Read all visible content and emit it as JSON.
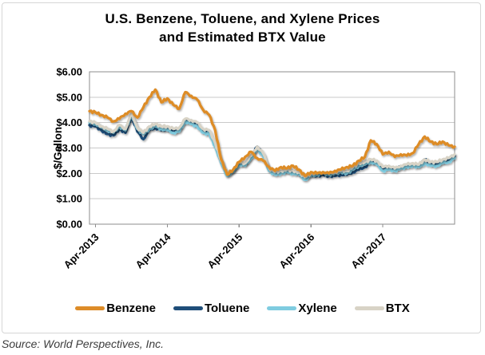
{
  "title": {
    "line1": "U.S. Benzene, Toluene, and Xylene Prices",
    "line2": "and Estimated BTX Value"
  },
  "source_note": "Source: World Perspectives, Inc.",
  "chart_data": {
    "type": "line",
    "title": "U.S. Benzene, Toluene, and Xylene Prices and Estimated BTX Value",
    "ylabel": "$/Gallon",
    "ylim": [
      0,
      6
    ],
    "ytick_labels": [
      "$0.00",
      "$1.00",
      "$2.00",
      "$3.00",
      "$4.00",
      "$5.00",
      "$6.00"
    ],
    "grid": "horizontal",
    "legend_position": "bottom",
    "x_unit": "month",
    "x_range": [
      "Mar-2013",
      "Apr-2018"
    ],
    "xticks": [
      {
        "label": "Apr-2013",
        "index": 1
      },
      {
        "label": "Apr-2014",
        "index": 13
      },
      {
        "label": "Apr-2015",
        "index": 25
      },
      {
        "label": "Apr-2016",
        "index": 37
      },
      {
        "label": "Apr-2017",
        "index": 49
      }
    ],
    "series": [
      {
        "name": "Benzene",
        "color": "#DD8C28",
        "values": [
          4.45,
          4.4,
          4.3,
          4.2,
          4.05,
          4.15,
          4.35,
          4.45,
          4.2,
          4.6,
          5.0,
          5.3,
          4.8,
          4.95,
          4.7,
          4.55,
          5.2,
          5.05,
          4.9,
          4.5,
          4.3,
          3.7,
          2.55,
          1.95,
          2.15,
          2.45,
          2.65,
          2.85,
          2.6,
          2.5,
          2.25,
          2.1,
          2.25,
          2.2,
          2.3,
          2.15,
          1.9,
          2.05,
          2.0,
          2.05,
          2.0,
          2.1,
          2.15,
          2.25,
          2.3,
          2.5,
          2.65,
          3.3,
          3.15,
          2.75,
          2.85,
          2.65,
          2.75,
          2.7,
          2.8,
          3.15,
          3.45,
          3.25,
          3.15,
          3.25,
          3.1,
          3.05
        ]
      },
      {
        "name": "Toluene",
        "color": "#1F4E79",
        "values": [
          3.9,
          3.85,
          3.7,
          3.55,
          3.5,
          3.75,
          3.6,
          4.25,
          3.65,
          3.35,
          3.7,
          3.8,
          3.7,
          3.75,
          3.65,
          3.7,
          4.1,
          4.0,
          3.9,
          3.65,
          3.6,
          3.15,
          2.45,
          1.95,
          2.1,
          2.4,
          2.35,
          2.65,
          3.05,
          2.75,
          2.15,
          2.0,
          2.05,
          2.1,
          2.05,
          2.0,
          1.8,
          1.95,
          1.9,
          1.95,
          1.9,
          1.9,
          1.95,
          1.95,
          2.05,
          2.15,
          2.25,
          2.45,
          2.4,
          2.2,
          2.25,
          2.15,
          2.25,
          2.3,
          2.35,
          2.3,
          2.55,
          2.4,
          2.35,
          2.45,
          2.55,
          2.7
        ]
      },
      {
        "name": "Xylene",
        "color": "#7FCCE0",
        "values": [
          4.0,
          3.95,
          3.8,
          3.7,
          3.6,
          3.85,
          3.7,
          4.3,
          3.75,
          3.55,
          3.75,
          3.85,
          3.75,
          3.7,
          3.6,
          3.65,
          4.05,
          3.95,
          3.85,
          3.6,
          3.55,
          3.05,
          2.4,
          1.9,
          2.05,
          2.35,
          2.3,
          2.6,
          2.95,
          2.7,
          2.1,
          1.95,
          2.0,
          2.05,
          2.0,
          1.95,
          1.75,
          1.9,
          1.95,
          2.0,
          1.95,
          2.0,
          2.05,
          2.0,
          2.15,
          2.3,
          2.35,
          2.45,
          2.35,
          2.1,
          2.15,
          2.1,
          2.2,
          2.25,
          2.3,
          2.25,
          2.4,
          2.3,
          2.3,
          2.4,
          2.45,
          2.6
        ]
      },
      {
        "name": "BTX",
        "color": "#D8D3C6",
        "values": [
          4.05,
          4.0,
          3.85,
          3.75,
          3.65,
          3.9,
          3.75,
          4.35,
          3.8,
          3.6,
          3.85,
          3.95,
          3.85,
          3.85,
          3.75,
          3.8,
          4.15,
          4.1,
          4.0,
          3.75,
          3.7,
          3.2,
          2.5,
          2.0,
          2.15,
          2.45,
          2.4,
          2.7,
          3.05,
          2.8,
          2.2,
          2.05,
          2.1,
          2.15,
          2.1,
          2.05,
          1.85,
          2.0,
          2.0,
          2.05,
          2.0,
          2.05,
          2.1,
          2.1,
          2.25,
          2.4,
          2.45,
          2.55,
          2.5,
          2.25,
          2.3,
          2.2,
          2.3,
          2.35,
          2.4,
          2.35,
          2.55,
          2.45,
          2.45,
          2.55,
          2.6,
          2.75
        ]
      }
    ]
  },
  "colors": {
    "plot_border": "#8E8E8E",
    "gridline": "#C9C9C9",
    "outer_border": "#D6D6D6",
    "axis_text": "#000000",
    "source_text": "#3C3C3C"
  }
}
